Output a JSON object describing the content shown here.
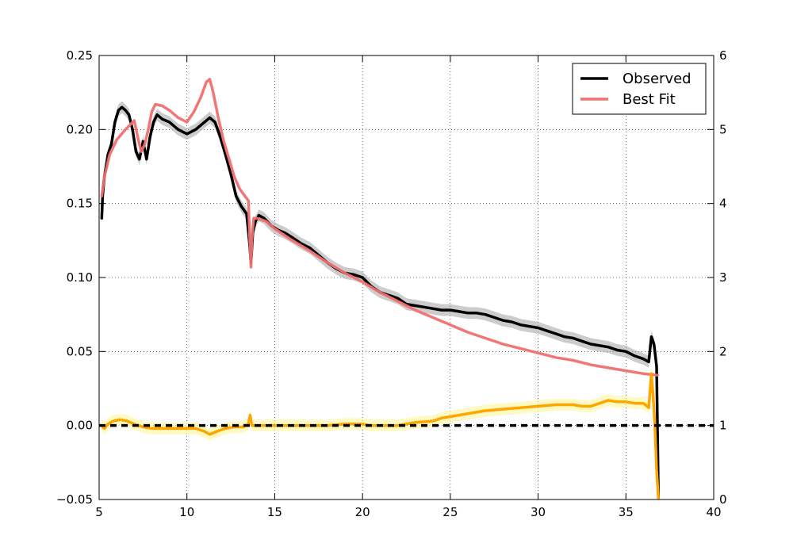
{
  "chart_data": {
    "type": "line",
    "title": "",
    "xlabel": "",
    "ylabel": "",
    "y2label": "",
    "xlim": [
      5,
      40
    ],
    "ylim": [
      -0.05,
      0.25
    ],
    "y2lim": [
      0,
      6
    ],
    "x_ticks": [
      "5",
      "10",
      "15",
      "20",
      "25",
      "30",
      "35",
      "40"
    ],
    "y_ticks": [
      "−0.05",
      "0.00",
      "0.05",
      "0.10",
      "0.15",
      "0.20",
      "0.25"
    ],
    "y2_ticks": [
      "0",
      "1",
      "2",
      "3",
      "4",
      "5",
      "6"
    ],
    "grid": true,
    "legend_position": "top-right",
    "legend": [
      {
        "label": "Observed",
        "color": "#000000"
      },
      {
        "label": "Best Fit",
        "color": "#f07070"
      }
    ],
    "series": [
      {
        "name": "Observed",
        "color": "#000000",
        "band_color": "#aaaaaa",
        "x": [
          5.15,
          5.2,
          5.3,
          5.5,
          5.7,
          5.9,
          6.1,
          6.3,
          6.5,
          6.7,
          6.9,
          7.1,
          7.3,
          7.5,
          7.7,
          7.9,
          8.1,
          8.3,
          8.6,
          9.0,
          9.5,
          10.0,
          10.5,
          11.0,
          11.3,
          11.6,
          11.9,
          12.2,
          12.5,
          12.8,
          13.1,
          13.4,
          13.55,
          13.65,
          13.75,
          13.9,
          14.1,
          14.4,
          14.8,
          15.2,
          15.6,
          16.0,
          16.5,
          17.0,
          17.5,
          18.0,
          18.5,
          19.0,
          19.5,
          20.0,
          20.5,
          21.0,
          21.5,
          22.0,
          22.5,
          23.0,
          23.5,
          24.0,
          24.5,
          25.0,
          25.5,
          26.0,
          26.5,
          27.0,
          27.5,
          28.0,
          28.5,
          29.0,
          29.5,
          30.0,
          30.5,
          31.0,
          31.5,
          32.0,
          32.5,
          33.0,
          33.5,
          34.0,
          34.5,
          35.0,
          35.5,
          36.0,
          36.3,
          36.45,
          36.6,
          36.75,
          36.85
        ],
        "values": [
          0.14,
          0.155,
          0.168,
          0.183,
          0.19,
          0.205,
          0.213,
          0.215,
          0.213,
          0.21,
          0.2,
          0.185,
          0.18,
          0.192,
          0.18,
          0.195,
          0.205,
          0.21,
          0.207,
          0.205,
          0.2,
          0.197,
          0.2,
          0.205,
          0.208,
          0.205,
          0.195,
          0.183,
          0.17,
          0.155,
          0.148,
          0.143,
          0.125,
          0.11,
          0.13,
          0.138,
          0.142,
          0.14,
          0.135,
          0.132,
          0.13,
          0.127,
          0.123,
          0.12,
          0.115,
          0.11,
          0.106,
          0.103,
          0.102,
          0.1,
          0.094,
          0.09,
          0.088,
          0.086,
          0.082,
          0.081,
          0.08,
          0.079,
          0.078,
          0.078,
          0.077,
          0.076,
          0.076,
          0.075,
          0.073,
          0.071,
          0.07,
          0.068,
          0.067,
          0.066,
          0.064,
          0.062,
          0.06,
          0.059,
          0.057,
          0.055,
          0.054,
          0.053,
          0.051,
          0.05,
          0.047,
          0.045,
          0.043,
          0.06,
          0.055,
          0.04,
          -0.05
        ]
      },
      {
        "name": "Best Fit",
        "color": "#f07070",
        "x": [
          5.15,
          5.3,
          5.6,
          6.0,
          6.5,
          7.0,
          7.2,
          7.4,
          7.6,
          7.8,
          8.0,
          8.2,
          8.6,
          9.0,
          9.5,
          10.0,
          10.4,
          10.8,
          11.1,
          11.3,
          11.5,
          11.8,
          12.1,
          12.4,
          12.7,
          13.0,
          13.3,
          13.5,
          13.6,
          13.65,
          13.7,
          13.8,
          14.0,
          14.5,
          15.0,
          16.0,
          17.0,
          18.0,
          19.0,
          20.0,
          21.0,
          22.0,
          23.0,
          24.0,
          25.0,
          26.0,
          27.0,
          28.0,
          29.0,
          30.0,
          31.0,
          32.0,
          33.0,
          34.0,
          35.0,
          36.0,
          36.8
        ],
        "values": [
          0.155,
          0.168,
          0.183,
          0.193,
          0.2,
          0.206,
          0.195,
          0.185,
          0.19,
          0.2,
          0.212,
          0.217,
          0.216,
          0.213,
          0.208,
          0.205,
          0.212,
          0.222,
          0.232,
          0.234,
          0.225,
          0.207,
          0.192,
          0.18,
          0.168,
          0.16,
          0.155,
          0.152,
          0.12,
          0.107,
          0.125,
          0.14,
          0.14,
          0.138,
          0.133,
          0.125,
          0.118,
          0.11,
          0.103,
          0.097,
          0.09,
          0.084,
          0.078,
          0.073,
          0.068,
          0.063,
          0.059,
          0.055,
          0.052,
          0.049,
          0.046,
          0.044,
          0.041,
          0.039,
          0.037,
          0.035,
          0.034
        ]
      },
      {
        "name": "",
        "color": "#ffa500",
        "band_color": "#fff59a",
        "x": [
          5.15,
          5.3,
          5.5,
          5.8,
          6.2,
          6.6,
          7.0,
          7.5,
          8.0,
          8.5,
          9.0,
          9.5,
          10.0,
          10.5,
          11.0,
          11.3,
          11.7,
          12.2,
          12.7,
          13.2,
          13.5,
          13.6,
          13.7,
          14.0,
          14.5,
          15.0,
          16.0,
          17.0,
          18.0,
          19.0,
          19.5,
          20.0,
          20.5,
          21.0,
          22.0,
          23.0,
          24.0,
          24.5,
          25.0,
          26.0,
          27.0,
          28.0,
          29.0,
          30.0,
          31.0,
          32.0,
          32.5,
          33.0,
          33.5,
          34.0,
          34.5,
          35.0,
          35.5,
          36.0,
          36.3,
          36.45,
          36.55,
          36.65,
          36.75,
          36.85
        ],
        "values": [
          0.0,
          -0.002,
          0.001,
          0.003,
          0.004,
          0.003,
          0.001,
          -0.001,
          -0.002,
          -0.002,
          -0.002,
          -0.002,
          -0.002,
          -0.002,
          -0.004,
          -0.006,
          -0.004,
          -0.002,
          -0.001,
          -0.001,
          0.001,
          0.007,
          0.0,
          0.0,
          0.0,
          0.0,
          0.0,
          0.0,
          0.0,
          0.001,
          0.001,
          0.001,
          0.0,
          0.0,
          0.0,
          0.002,
          0.003,
          0.005,
          0.006,
          0.008,
          0.01,
          0.011,
          0.012,
          0.013,
          0.014,
          0.014,
          0.013,
          0.013,
          0.015,
          0.017,
          0.016,
          0.016,
          0.015,
          0.015,
          0.012,
          0.035,
          0.02,
          0.0,
          -0.03,
          -0.05
        ]
      }
    ],
    "reference_lines": [
      {
        "y": 0.0,
        "style": "dashed",
        "color": "#000000"
      }
    ]
  }
}
